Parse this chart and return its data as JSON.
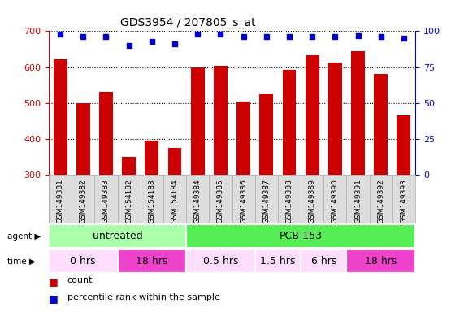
{
  "title": "GDS3954 / 207805_s_at",
  "samples": [
    "GSM149381",
    "GSM149382",
    "GSM149383",
    "GSM154182",
    "GSM154183",
    "GSM154184",
    "GSM149384",
    "GSM149385",
    "GSM149386",
    "GSM149387",
    "GSM149388",
    "GSM149389",
    "GSM149390",
    "GSM149391",
    "GSM149392",
    "GSM149393"
  ],
  "counts": [
    622,
    500,
    530,
    350,
    395,
    375,
    600,
    603,
    505,
    525,
    592,
    632,
    613,
    645,
    580,
    465
  ],
  "percentile_ranks": [
    98,
    96,
    96,
    90,
    93,
    91,
    98,
    98,
    96,
    96,
    96,
    96,
    96,
    97,
    96,
    95
  ],
  "bar_color": "#cc0000",
  "dot_color": "#0000cc",
  "ylim_left": [
    300,
    700
  ],
  "ylim_right": [
    0,
    100
  ],
  "yticks_left": [
    300,
    400,
    500,
    600,
    700
  ],
  "yticks_right": [
    0,
    25,
    50,
    75,
    100
  ],
  "agent_groups": [
    {
      "label": "untreated",
      "start": 0,
      "end": 6,
      "color": "#aaffaa"
    },
    {
      "label": "PCB-153",
      "start": 6,
      "end": 16,
      "color": "#55ee55"
    }
  ],
  "time_groups": [
    {
      "label": "0 hrs",
      "start": 0,
      "end": 3,
      "color": "#ffddff"
    },
    {
      "label": "18 hrs",
      "start": 3,
      "end": 6,
      "color": "#ee44cc"
    },
    {
      "label": "0.5 hrs",
      "start": 6,
      "end": 9,
      "color": "#ffddff"
    },
    {
      "label": "1.5 hrs",
      "start": 9,
      "end": 11,
      "color": "#ffddff"
    },
    {
      "label": "6 hrs",
      "start": 11,
      "end": 13,
      "color": "#ffddff"
    },
    {
      "label": "18 hrs",
      "start": 13,
      "end": 16,
      "color": "#ee44cc"
    }
  ],
  "legend_count_color": "#cc0000",
  "legend_dot_color": "#0000cc",
  "background_color": "#ffffff",
  "tick_label_color_left": "#cc0000",
  "tick_label_color_right": "#0000cc",
  "xticklabel_bg": "#dddddd"
}
